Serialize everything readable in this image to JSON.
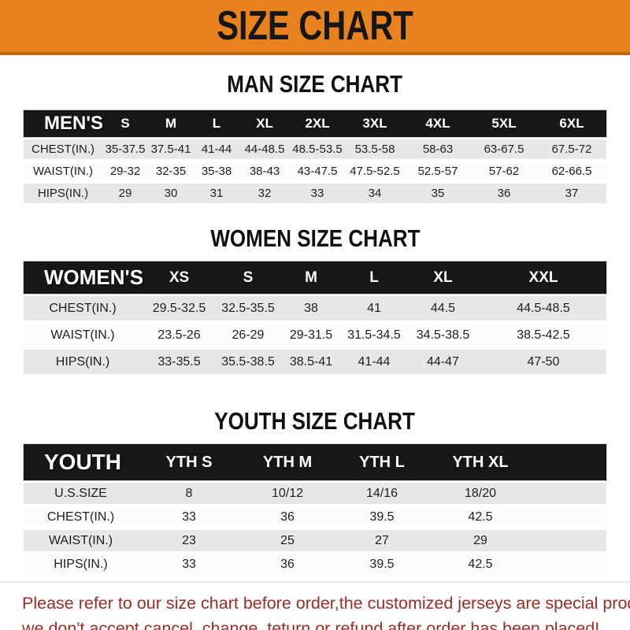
{
  "banner": {
    "title": "SIZE CHART"
  },
  "sections": [
    {
      "title": "MAN SIZE CHART",
      "header_label": "MEN'S",
      "columns": [
        "S",
        "M",
        "L",
        "XL",
        "2XL",
        "3XL",
        "4XL",
        "5XL",
        "6XL"
      ],
      "rows": [
        {
          "label": "CHEST(IN.)",
          "values": [
            "35-37.5",
            "37.5-41",
            "41-44",
            "44-48.5",
            "48.5-53.5",
            "53.5-58",
            "58-63",
            "63-67.5",
            "67.5-72"
          ]
        },
        {
          "label": "WAIST(IN.)",
          "values": [
            "29-32",
            "32-35",
            "35-38",
            "38-43",
            "43-47.5",
            "47.5-52.5",
            "52.5-57",
            "57-62",
            "62-66.5"
          ]
        },
        {
          "label": "HIPS(IN.)",
          "values": [
            "29",
            "30",
            "31",
            "32",
            "33",
            "34",
            "35",
            "36",
            "37"
          ]
        }
      ]
    },
    {
      "title": "WOMEN SIZE CHART",
      "header_label": "WOMEN'S",
      "columns": [
        "XS",
        "S",
        "M",
        "L",
        "XL",
        "XXL"
      ],
      "rows": [
        {
          "label": "CHEST(IN.)",
          "values": [
            "29.5-32.5",
            "32.5-35.5",
            "38",
            "41",
            "44.5",
            "44.5-48.5"
          ]
        },
        {
          "label": "WAIST(IN.)",
          "values": [
            "23.5-26",
            "26-29",
            "29-31.5",
            "31.5-34.5",
            "34.5-38.5",
            "38.5-42.5"
          ]
        },
        {
          "label": "HIPS(IN.)",
          "values": [
            "33-35.5",
            "35.5-38.5",
            "38.5-41",
            "41-44",
            "44-47",
            "47-50"
          ]
        }
      ]
    },
    {
      "title": "YOUTH SIZE CHART",
      "header_label": "YOUTH",
      "columns": [
        "YTH S",
        "YTH M",
        "YTH L",
        "YTH XL"
      ],
      "rows": [
        {
          "label": "U.S.SIZE",
          "values": [
            "8",
            "10/12",
            "14/16",
            "18/20"
          ]
        },
        {
          "label": "CHEST(IN.)",
          "values": [
            "33",
            "36",
            "39.5",
            "42.5"
          ]
        },
        {
          "label": "WAIST(IN.)",
          "values": [
            "23",
            "25",
            "27",
            "29"
          ]
        },
        {
          "label": "HIPS(IN.)",
          "values": [
            "33",
            "36",
            "39.5",
            "42.5"
          ]
        }
      ]
    }
  ],
  "footer": {
    "line1": "Please refer to our size chart before order,the customized jerseys are special products,",
    "line2": "we don't accept cancel, change, teturn or refund after order has been placed!"
  },
  "colors": {
    "banner_bg": "#E8821E",
    "banner_edge": "#C06A10",
    "banner_text": "#161616",
    "bar_bg": "#171717",
    "bar_text": "#FFFFFF",
    "row_gray": "#E7E7E7",
    "row_white": "#FCFCFC",
    "body_text": "#1E1E1E",
    "footer_text": "#9E2B26",
    "background": "#FFFFFF"
  }
}
